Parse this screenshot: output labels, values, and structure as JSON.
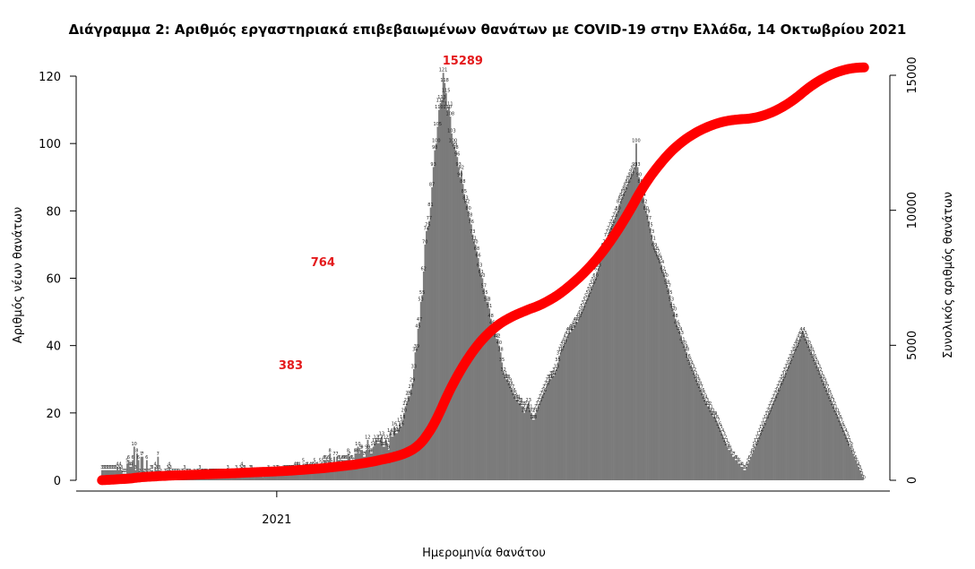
{
  "chart_data": {
    "type": "bar",
    "title": "Διάγραμμα 2: Αριθμός εργαστηριακά επιβεβαιωμένων θανάτων με COVID-19 στην Ελλάδα, 14 Οκτωβρίου 2021",
    "xlabel": "Ημερομηνία θανάτου",
    "ylabel": "Αριθμός νέων θανάτων",
    "ylabel_right": "Συνολικός αριθμός θανάτων",
    "ylim": [
      0,
      125
    ],
    "ylim_right": [
      0,
      15500
    ],
    "yticks": [
      0,
      20,
      40,
      60,
      80,
      100,
      120
    ],
    "yticks_right": [
      0,
      5000,
      10000,
      15000
    ],
    "xticks": [
      {
        "label": "2021",
        "index": 125
      }
    ],
    "colors": {
      "bars": "#7b7b7b",
      "cumulative": "#ff0000",
      "annotation": "#e41a1c"
    },
    "series": [
      {
        "name": "Αριθμός νέων θανάτων",
        "type": "bar",
        "values": [
          3,
          3,
          3,
          3,
          3,
          3,
          3,
          3,
          3,
          3,
          3,
          4,
          3,
          4,
          3,
          2,
          2,
          2,
          5,
          6,
          4,
          4,
          6,
          10,
          3,
          8,
          6,
          2,
          7,
          7,
          2,
          2,
          6,
          2,
          2,
          3,
          3,
          1,
          4,
          3,
          7,
          3,
          2,
          1,
          1,
          2,
          2,
          3,
          4,
          3,
          2,
          2,
          2,
          2,
          2,
          2,
          1,
          2,
          2,
          3,
          2,
          2,
          2,
          2,
          1,
          1,
          2,
          1,
          2,
          2,
          3,
          2,
          2,
          2,
          2,
          2,
          1,
          2,
          2,
          2,
          2,
          2,
          2,
          2,
          2,
          2,
          2,
          2,
          2,
          2,
          3,
          2,
          2,
          2,
          2,
          1,
          3,
          2,
          2,
          3,
          4,
          3,
          3,
          2,
          2,
          2,
          3,
          3,
          2,
          2,
          2,
          2,
          2,
          2,
          2,
          1,
          2,
          2,
          2,
          3,
          2,
          2,
          2,
          3,
          2,
          3,
          3,
          2,
          2,
          2,
          3,
          3,
          3,
          3,
          3,
          3,
          3,
          3,
          4,
          4,
          4,
          4,
          3,
          3,
          5,
          3,
          4,
          4,
          3,
          4,
          4,
          4,
          5,
          4,
          4,
          3,
          5,
          4,
          5,
          6,
          6,
          5,
          6,
          8,
          5,
          4,
          7,
          4,
          7,
          6,
          6,
          5,
          6,
          6,
          6,
          6,
          8,
          7,
          6,
          6,
          5,
          8,
          8,
          10,
          8,
          9,
          9,
          7,
          7,
          9,
          12,
          9,
          8,
          8,
          10,
          11,
          12,
          11,
          11,
          12,
          13,
          10,
          10,
          12,
          11,
          9,
          14,
          13,
          13,
          16,
          14,
          14,
          15,
          17,
          16,
          18,
          20,
          22,
          23,
          25,
          25,
          27,
          29,
          33,
          38,
          39,
          45,
          47,
          53,
          55,
          62,
          70,
          74,
          75,
          77,
          81,
          87,
          93,
          98,
          100,
          105,
          110,
          112,
          113,
          121,
          118,
          115,
          110,
          111,
          108,
          103,
          100,
          99,
          98,
          96,
          93,
          90,
          92,
          88,
          85,
          83,
          82,
          80,
          78,
          76,
          73,
          71,
          70,
          68,
          66,
          63,
          61,
          60,
          57,
          55,
          53,
          53,
          51,
          48,
          46,
          44,
          44,
          42,
          42,
          40,
          38,
          35,
          32,
          31,
          30,
          30,
          29,
          28,
          27,
          26,
          25,
          24,
          24,
          23,
          23,
          22,
          22,
          20,
          21,
          22,
          23,
          21,
          20,
          18,
          18,
          20,
          21,
          22,
          23,
          24,
          25,
          26,
          27,
          28,
          29,
          30,
          30,
          31,
          31,
          32,
          33,
          35,
          37,
          38,
          39,
          40,
          41,
          42,
          43,
          44,
          44,
          45,
          45,
          46,
          47,
          47,
          48,
          49,
          50,
          51,
          52,
          53,
          54,
          55,
          56,
          57,
          58,
          59,
          60,
          62,
          63,
          65,
          66,
          67,
          69,
          70,
          72,
          73,
          74,
          75,
          76,
          77,
          78,
          79,
          80,
          82,
          83,
          84,
          85,
          86,
          87,
          88,
          89,
          90,
          91,
          92,
          93,
          100,
          93,
          90,
          88,
          86,
          84,
          82,
          80,
          79,
          77,
          75,
          73,
          71,
          69,
          68,
          67,
          66,
          65,
          64,
          62,
          61,
          60,
          58,
          57,
          55,
          53,
          51,
          50,
          48,
          46,
          45,
          44,
          43,
          41,
          40,
          39,
          38,
          36,
          35,
          34,
          33,
          32,
          31,
          30,
          29,
          28,
          27,
          26,
          25,
          24,
          23,
          22,
          22,
          21,
          20,
          19,
          19,
          18,
          17,
          16,
          15,
          14,
          13,
          12,
          11,
          10,
          9,
          9,
          8,
          7,
          7,
          6,
          6,
          5,
          5,
          4,
          4,
          3,
          3,
          4,
          5,
          6,
          7,
          8,
          9,
          10,
          11,
          12,
          13,
          14,
          15,
          16,
          17,
          18,
          19,
          20,
          21,
          22,
          23,
          24,
          25,
          26,
          27,
          28,
          29,
          30,
          31,
          32,
          33,
          34,
          35,
          36,
          37,
          38,
          39,
          40,
          41,
          42,
          43,
          44,
          43,
          42,
          41,
          40,
          39,
          38,
          37,
          36,
          35,
          34,
          33,
          32,
          31,
          30,
          29,
          28,
          27,
          26,
          25,
          24,
          23,
          22,
          21,
          20,
          19,
          18,
          17,
          16,
          15,
          14,
          13,
          12,
          11,
          10,
          9,
          8,
          7,
          6,
          5,
          4,
          3,
          2,
          1,
          0
        ]
      },
      {
        "name": "Συνολικός αριθμός θανάτων",
        "type": "line",
        "axis": "right",
        "description": "cumulative sum of the daily values above"
      }
    ],
    "annotations": [
      {
        "text": "383",
        "bar_index": 135
      },
      {
        "text": "764",
        "bar_index": 158
      },
      {
        "text": "15289",
        "bar_index": 258
      }
    ]
  }
}
